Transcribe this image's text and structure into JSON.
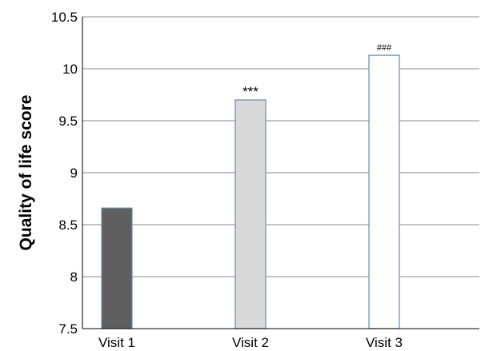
{
  "chart_data": {
    "type": "bar",
    "title": "",
    "xlabel": "",
    "ylabel": "Quality of life score",
    "categories": [
      "Visit 1",
      "Visit 2",
      "Visit 3"
    ],
    "values": [
      8.66,
      9.7,
      10.13
    ],
    "annotations": [
      "",
      "***",
      "###"
    ],
    "bar_fill_colors": [
      "#5f5f5f",
      "#d9d9d9",
      "#ffffff"
    ],
    "bar_stroke_color": "#6a8aa8",
    "ylim": [
      7.5,
      10.5
    ],
    "yticks": [
      7.5,
      8,
      8.5,
      9,
      9.5,
      10,
      10.5
    ],
    "ytick_labels": [
      "7.5",
      "8",
      "8.5",
      "9",
      "9.5",
      "10",
      "10.5"
    ],
    "grid": true,
    "gridline_color": "#888888"
  }
}
